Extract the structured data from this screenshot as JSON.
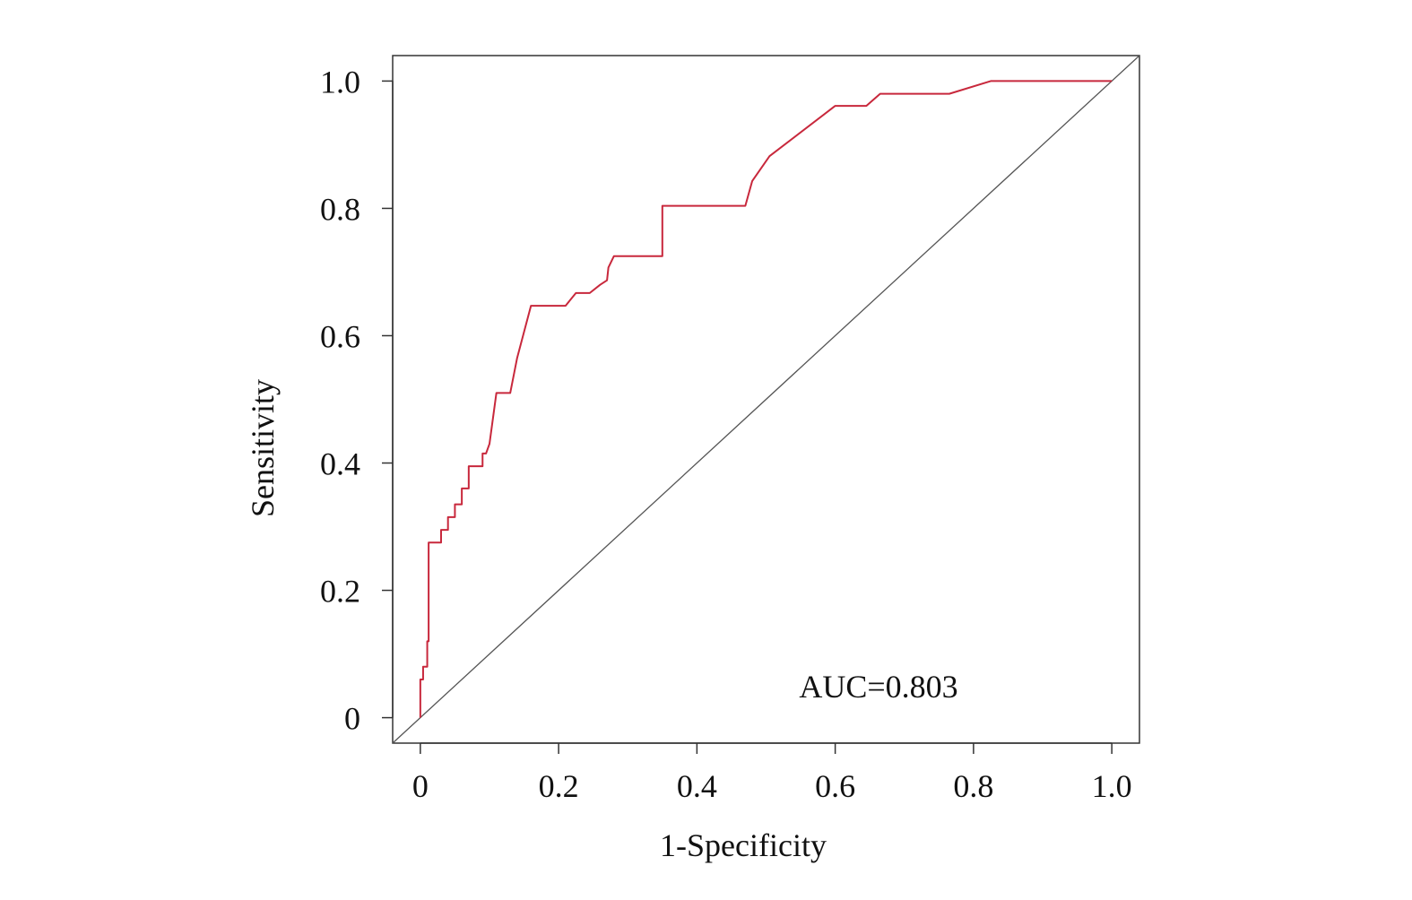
{
  "chart_data": {
    "type": "line",
    "title": "",
    "xlabel": "1-Specificity",
    "ylabel": "Sensitivity",
    "xlim": [
      -0.04,
      1.04
    ],
    "ylim": [
      -0.04,
      1.04
    ],
    "x_ticks": [
      0,
      0.2,
      0.4,
      0.6,
      0.8,
      1.0
    ],
    "x_tick_labels": [
      "0",
      "0.2",
      "0.4",
      "0.6",
      "0.8",
      "1.0"
    ],
    "y_ticks": [
      0,
      0.2,
      0.4,
      0.6,
      0.8,
      1.0
    ],
    "y_tick_labels": [
      "0",
      "0.2",
      "0.4",
      "0.6",
      "0.8",
      "1.0"
    ],
    "grid": false,
    "legend": "none",
    "annotation": "AUC=0.803",
    "series": [
      {
        "color": "#c8283c",
        "x": [
          0,
          0,
          0.004,
          0.004,
          0.01,
          0.01,
          0.012,
          0.012,
          0.03,
          0.03,
          0.04,
          0.04,
          0.05,
          0.05,
          0.06,
          0.06,
          0.07,
          0.07,
          0.09,
          0.09,
          0.095,
          0.1,
          0.105,
          0.11,
          0.13,
          0.14,
          0.16,
          0.21,
          0.225,
          0.245,
          0.26,
          0.27,
          0.272,
          0.28,
          0.35,
          0.35,
          0.47,
          0.48,
          0.505,
          0.6,
          0.645,
          0.665,
          0.765,
          0.825,
          1.0
        ],
        "y": [
          0,
          0.06,
          0.06,
          0.08,
          0.08,
          0.12,
          0.12,
          0.275,
          0.275,
          0.295,
          0.295,
          0.315,
          0.315,
          0.335,
          0.335,
          0.36,
          0.36,
          0.395,
          0.395,
          0.415,
          0.415,
          0.43,
          0.47,
          0.51,
          0.51,
          0.565,
          0.647,
          0.647,
          0.667,
          0.667,
          0.68,
          0.687,
          0.707,
          0.725,
          0.725,
          0.804,
          0.804,
          0.843,
          0.882,
          0.961,
          0.961,
          0.98,
          0.98,
          1.0,
          1.0
        ]
      },
      {
        "color": "#555555",
        "x": [
          -0.04,
          1.04
        ],
        "y": [
          -0.04,
          1.04
        ]
      }
    ]
  }
}
